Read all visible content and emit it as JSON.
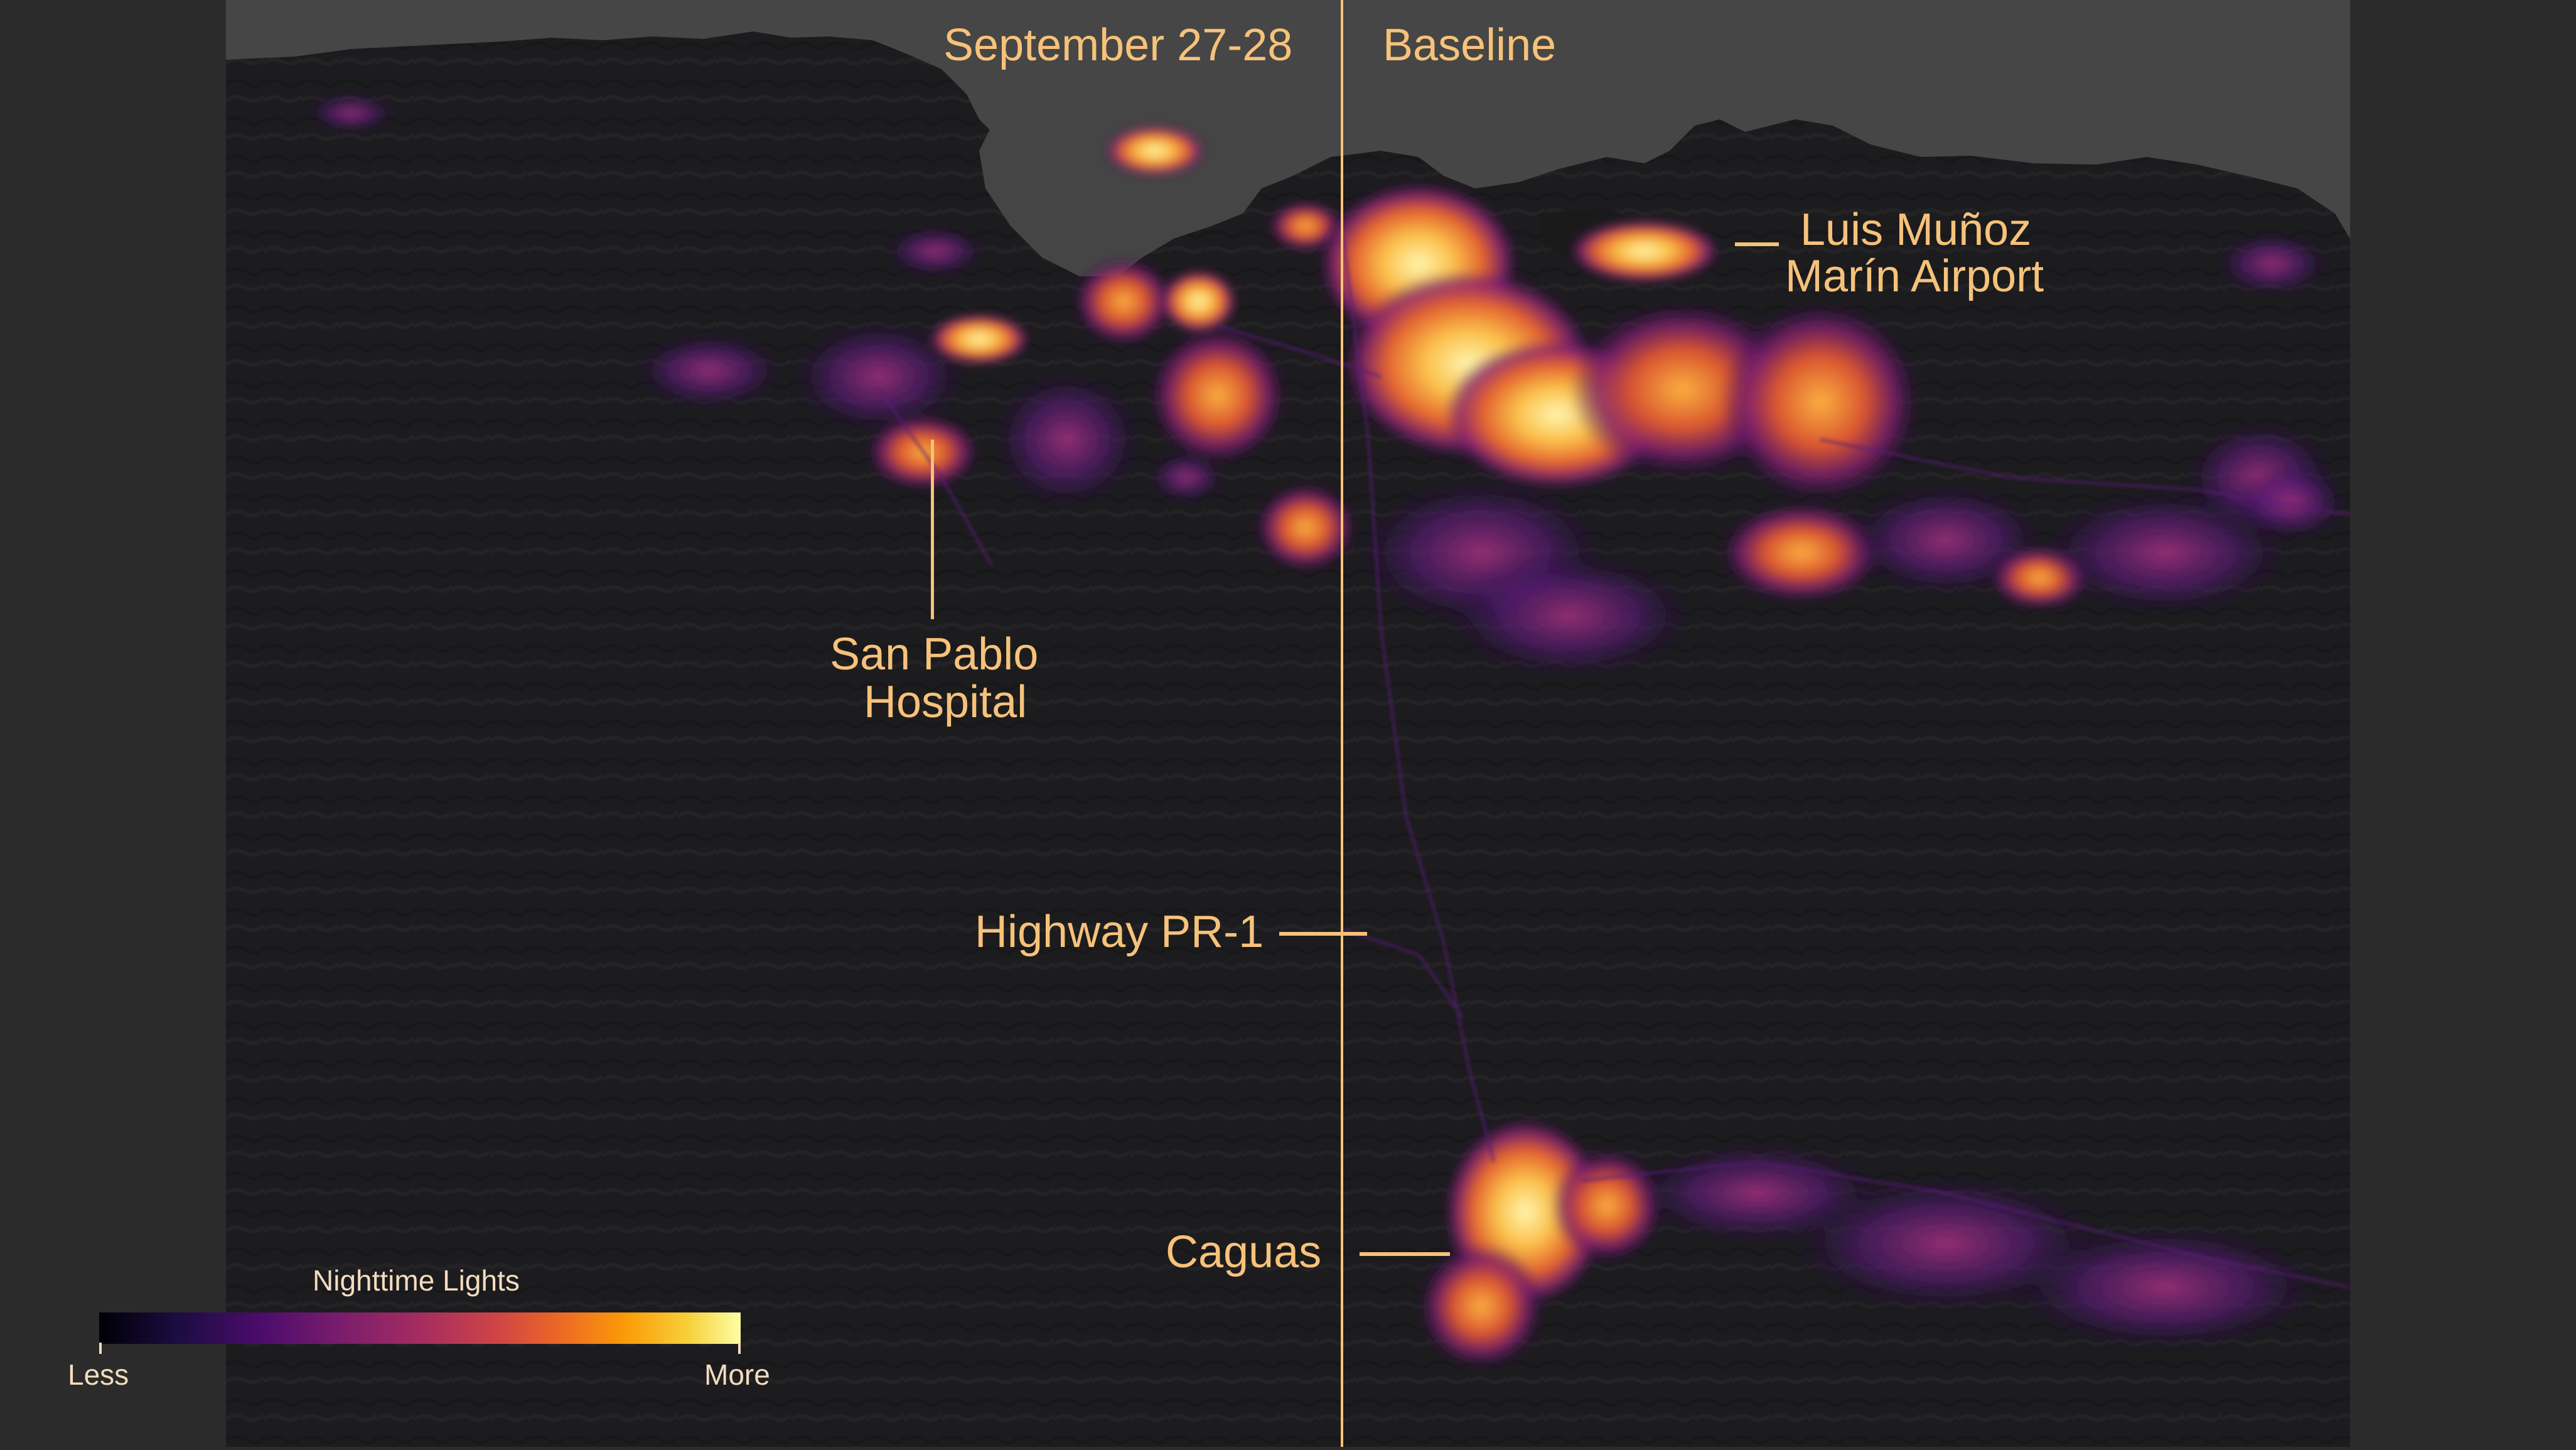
{
  "panels": {
    "left_title": "September 27-28",
    "right_title": "Baseline"
  },
  "callouts": {
    "airport": [
      "Luis Muñoz",
      "Marín Airport"
    ],
    "hospital": [
      "San  Pablo",
      "Hospital"
    ],
    "highway": "Highway PR-1",
    "caguas": "Caguas"
  },
  "legend": {
    "title": "Nighttime Lights",
    "low": "Less",
    "high": "More"
  },
  "colors": {
    "label": "#f6c27a",
    "background": "#2b2b2b",
    "land": "#1d1d1f",
    "ocean": "#454545",
    "divider": "#f6c27a"
  }
}
